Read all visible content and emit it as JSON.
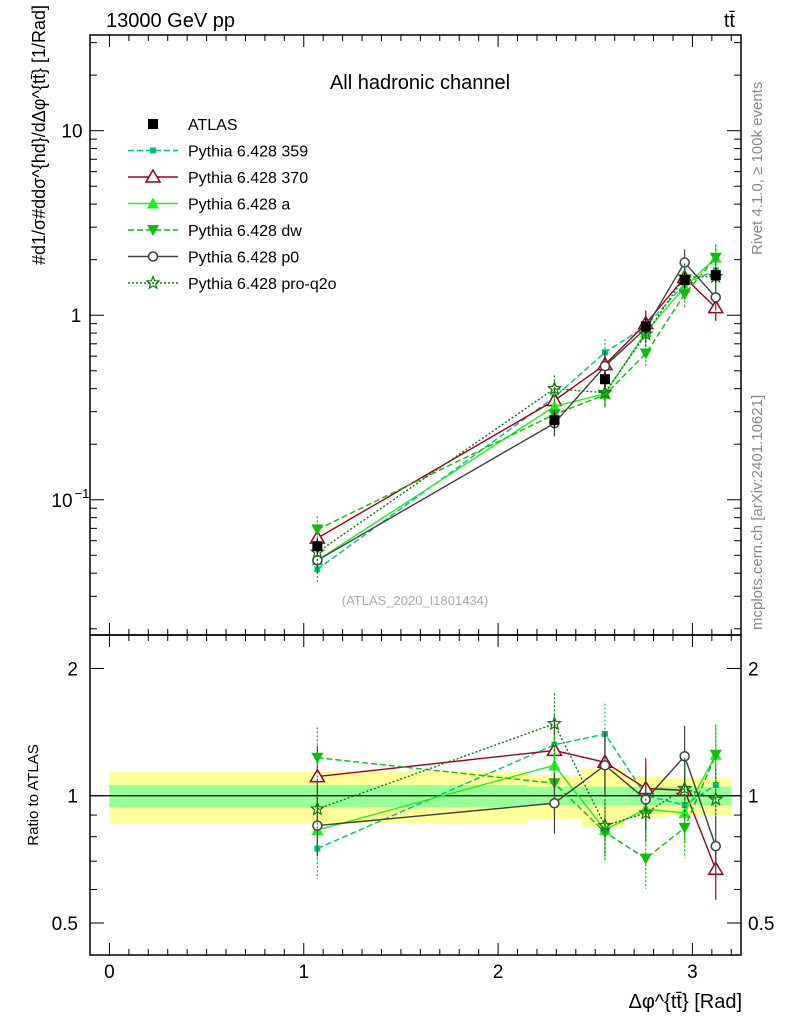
{
  "header": {
    "energy_label": "13000 GeV pp",
    "process_label": "tt̄"
  },
  "side_labels": {
    "rivet": "Rivet 4.1.0, ≥ 100k events",
    "mcplots": "mcplots.cern.ch [arXiv:2401.10621]"
  },
  "chart_data": {
    "type": "line",
    "title": "All hadronic channel",
    "watermark": "(ATLAS_2020_I1801434)",
    "ylabel": "#d1/σ#ddσ^{hd}/dΔφ^{tt̄} [1/Rad]",
    "xlabel": "Δφ^{tt̄} [Rad]",
    "ratio_ylabel": "Ratio to ATLAS",
    "xlim": [
      -0.1,
      3.25
    ],
    "ylim": [
      0.0185,
      33
    ],
    "ratio_ylim": [
      0.42,
      2.4
    ],
    "yscale": "log",
    "x_ticks": [
      "0",
      "1",
      "2",
      "3"
    ],
    "y_ticks": [
      "10^-1",
      "1",
      "10"
    ],
    "ratio_ticks": [
      "0.5",
      "1",
      "2"
    ],
    "bins": [
      0.0,
      2.15,
      2.43,
      2.65,
      2.87,
      3.05,
      3.2
    ],
    "x": [
      1.07,
      2.29,
      2.55,
      2.76,
      2.96,
      3.12
    ],
    "legend": [
      "ATLAS",
      "Pythia 6.428 359",
      "Pythia 6.428 370",
      "Pythia 6.428 a",
      "Pythia 6.428 dw",
      "Pythia 6.428 p0",
      "Pythia 6.428 pro-q2o"
    ],
    "data": {
      "name": "ATLAS",
      "values": [
        0.056,
        0.27,
        0.45,
        0.87,
        1.55,
        1.65
      ]
    },
    "band_stat": [
      0.06,
      0.05,
      0.05,
      0.05,
      0.05,
      0.05
    ],
    "band_total": [
      0.14,
      0.12,
      0.16,
      0.11,
      0.1,
      0.1
    ],
    "series": [
      {
        "name": "Pythia 6.428 359",
        "color": "#00c080",
        "dash": "6,3",
        "marker": "square-small",
        "values": [
          0.042,
          0.36,
          0.63,
          0.87,
          1.48,
          1.75
        ],
        "ratio": [
          0.75,
          1.32,
          1.4,
          1.0,
          0.95,
          1.06
        ]
      },
      {
        "name": "Pythia 6.428 370",
        "color": "#a00018",
        "dash": "",
        "marker": "triangle-open",
        "values": [
          0.062,
          0.345,
          0.54,
          0.9,
          1.6,
          1.1
        ],
        "ratio": [
          1.11,
          1.28,
          1.2,
          1.04,
          1.03,
          0.67
        ]
      },
      {
        "name": "Pythia 6.428 a",
        "color": "#22ee22",
        "dash": "",
        "marker": "triangle-filled",
        "values": [
          0.047,
          0.32,
          0.375,
          0.81,
          1.42,
          2.05
        ],
        "ratio": [
          0.83,
          1.18,
          0.83,
          0.93,
          0.91,
          1.25
        ]
      },
      {
        "name": "Pythia 6.428 dw",
        "color": "#11bb11",
        "dash": "6,3",
        "marker": "triangle-down",
        "values": [
          0.069,
          0.29,
          0.37,
          0.62,
          1.3,
          2.05
        ],
        "ratio": [
          1.23,
          1.07,
          0.82,
          0.71,
          0.84,
          1.25
        ]
      },
      {
        "name": "Pythia 6.428 p0",
        "color": "#404040",
        "dash": "",
        "marker": "circle-open",
        "values": [
          0.047,
          0.26,
          0.53,
          0.85,
          1.93,
          1.25
        ],
        "ratio": [
          0.85,
          0.96,
          1.18,
          0.98,
          1.24,
          0.76
        ]
      },
      {
        "name": "Pythia 6.428 pro-q2o",
        "color": "#117711",
        "dash": "2,2",
        "marker": "star",
        "values": [
          0.052,
          0.4,
          0.38,
          0.79,
          1.61,
          1.62
        ],
        "ratio": [
          0.93,
          1.48,
          0.85,
          0.91,
          1.04,
          0.98
        ]
      }
    ]
  }
}
